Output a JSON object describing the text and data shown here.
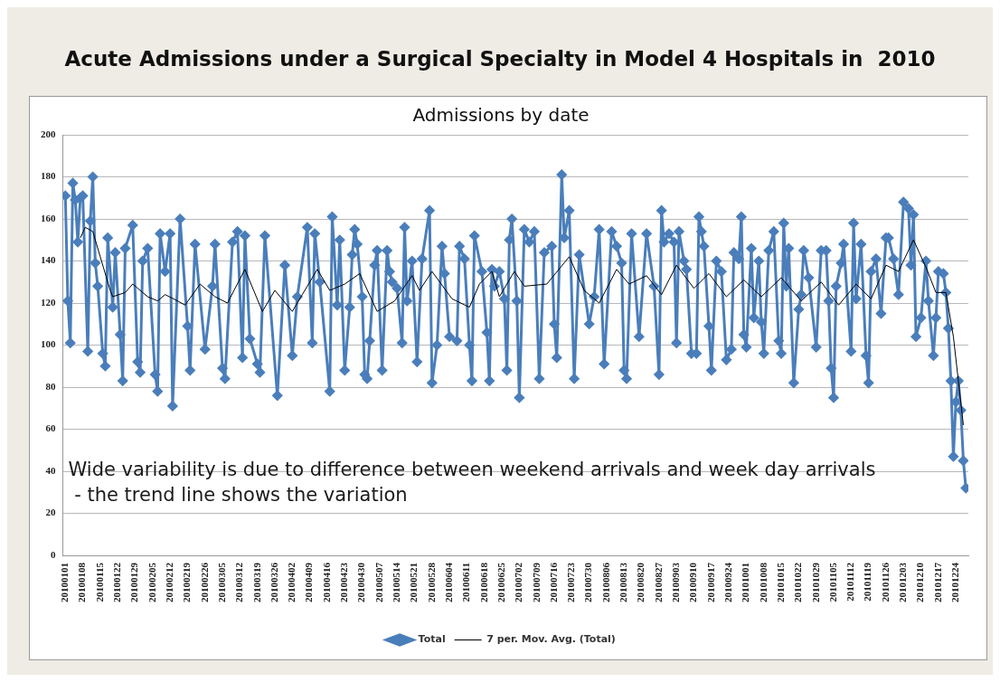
{
  "chart_data": {
    "type": "line",
    "title": "Acute Admissions under a Surgical Specialty in Model 4 Hospitals in  2010",
    "subtitle": "Admissions by date",
    "annotations": [
      "Wide variability is due to difference between weekend arrivals and week day arrivals\n - the trend line shows the variation"
    ],
    "series": [
      {
        "name": "Total",
        "color": "#4a7ebb",
        "marker": "diamond",
        "line_style": "solid",
        "x": [
          "2010-01-01",
          "2010-01-02",
          "2010-01-03",
          "2010-01-04",
          "2010-01-05",
          "2010-01-06",
          "2010-01-07",
          "2010-01-08",
          "2010-01-10",
          "2010-01-11",
          "2010-01-12",
          "2010-01-13",
          "2010-01-14",
          "2010-01-16",
          "2010-01-17",
          "2010-01-18",
          "2010-01-20",
          "2010-01-21",
          "2010-01-23",
          "2010-01-24",
          "2010-01-25",
          "2010-01-28",
          "2010-01-30",
          "2010-01-31",
          "2010-02-01",
          "2010-02-03",
          "2010-02-06",
          "2010-02-07",
          "2010-02-08",
          "2010-02-10",
          "2010-02-12",
          "2010-02-13",
          "2010-02-16",
          "2010-02-19",
          "2010-02-20",
          "2010-02-22",
          "2010-02-26",
          "2010-03-01",
          "2010-03-02",
          "2010-03-05",
          "2010-03-06",
          "2010-03-09",
          "2010-03-11",
          "2010-03-13",
          "2010-03-14",
          "2010-03-16",
          "2010-03-19",
          "2010-03-20",
          "2010-03-22",
          "2010-03-27",
          "2010-03-30",
          "2010-04-02",
          "2010-04-04",
          "2010-04-08",
          "2010-04-10",
          "2010-04-11",
          "2010-04-13",
          "2010-04-17",
          "2010-04-18",
          "2010-04-20",
          "2010-04-21",
          "2010-04-23",
          "2010-04-25",
          "2010-04-26",
          "2010-04-27",
          "2010-04-28",
          "2010-04-30",
          "2010-05-01",
          "2010-05-02",
          "2010-05-03",
          "2010-05-05",
          "2010-05-06",
          "2010-05-08",
          "2010-05-10",
          "2010-05-11",
          "2010-05-12",
          "2010-05-14",
          "2010-05-16",
          "2010-05-17",
          "2010-05-18",
          "2010-05-20",
          "2010-05-22",
          "2010-05-24",
          "2010-05-27",
          "2010-05-28",
          "2010-05-30",
          "2010-06-01",
          "2010-06-02",
          "2010-06-04",
          "2010-06-07",
          "2010-06-08",
          "2010-06-10",
          "2010-06-12",
          "2010-06-13",
          "2010-06-14",
          "2010-06-17",
          "2010-06-19",
          "2010-06-20",
          "2010-06-21",
          "2010-06-22",
          "2010-06-24",
          "2010-06-26",
          "2010-06-27",
          "2010-06-28",
          "2010-06-29",
          "2010-07-01",
          "2010-07-02",
          "2010-07-04",
          "2010-07-06",
          "2010-07-08",
          "2010-07-10",
          "2010-07-12",
          "2010-07-15",
          "2010-07-16",
          "2010-07-17",
          "2010-07-19",
          "2010-07-20",
          "2010-07-22",
          "2010-07-24",
          "2010-07-26",
          "2010-07-30",
          "2010-08-01",
          "2010-08-03",
          "2010-08-05",
          "2010-08-08",
          "2010-08-10",
          "2010-08-12",
          "2010-08-13",
          "2010-08-14",
          "2010-08-16",
          "2010-08-19",
          "2010-08-22",
          "2010-08-25",
          "2010-08-27",
          "2010-08-28",
          "2010-08-29",
          "2010-08-31",
          "2010-09-02",
          "2010-09-03",
          "2010-09-04",
          "2010-09-06",
          "2010-09-07",
          "2010-09-09",
          "2010-09-11",
          "2010-09-12",
          "2010-09-13",
          "2010-09-14",
          "2010-09-16",
          "2010-09-17",
          "2010-09-19",
          "2010-09-21",
          "2010-09-23",
          "2010-09-25",
          "2010-09-26",
          "2010-09-28",
          "2010-09-29",
          "2010-09-30",
          "2010-10-01",
          "2010-10-03",
          "2010-10-04",
          "2010-10-06",
          "2010-10-07",
          "2010-10-08",
          "2010-10-10",
          "2010-10-12",
          "2010-10-14",
          "2010-10-15",
          "2010-10-16",
          "2010-10-17",
          "2010-10-18",
          "2010-10-20",
          "2010-10-22",
          "2010-10-23",
          "2010-10-24",
          "2010-10-26",
          "2010-10-29",
          "2010-10-31",
          "2010-11-02",
          "2010-11-03",
          "2010-11-04",
          "2010-11-05",
          "2010-11-06",
          "2010-11-08",
          "2010-11-09",
          "2010-11-12",
          "2010-11-13",
          "2010-11-14",
          "2010-11-16",
          "2010-11-18",
          "2010-11-19",
          "2010-11-20",
          "2010-11-22",
          "2010-11-24",
          "2010-11-26",
          "2010-11-27",
          "2010-11-29",
          "2010-12-01",
          "2010-12-03",
          "2010-12-05",
          "2010-12-06",
          "2010-12-07",
          "2010-12-08",
          "2010-12-10",
          "2010-12-12",
          "2010-12-13",
          "2010-12-15",
          "2010-12-16",
          "2010-12-17",
          "2010-12-19",
          "2010-12-20",
          "2010-12-21",
          "2010-12-22",
          "2010-12-23",
          "2010-12-24",
          "2010-12-25",
          "2010-12-26",
          "2010-12-27",
          "2010-12-28"
        ],
        "values": [
          171,
          121,
          101,
          177,
          169,
          149,
          170,
          171,
          97,
          159,
          180,
          139,
          128,
          96,
          90,
          151,
          118,
          144,
          105,
          83,
          146,
          157,
          92,
          87,
          140,
          146,
          86,
          78,
          153,
          135,
          153,
          71,
          160,
          109,
          88,
          148,
          98,
          128,
          148,
          89,
          84,
          149,
          154,
          94,
          152,
          103,
          91,
          87,
          152,
          76,
          138,
          95,
          123,
          156,
          101,
          153,
          130,
          78,
          161,
          119,
          150,
          88,
          118,
          143,
          155,
          148,
          123,
          86,
          84,
          102,
          138,
          145,
          88,
          145,
          135,
          130,
          127,
          101,
          156,
          121,
          140,
          92,
          141,
          164,
          82,
          100,
          147,
          134,
          104,
          102,
          147,
          141,
          100,
          83,
          152,
          135,
          106,
          83,
          136,
          128,
          135,
          122,
          88,
          150,
          160,
          121,
          75,
          155,
          149,
          154,
          84,
          144,
          147,
          110,
          94,
          181,
          151,
          164,
          84,
          143,
          110,
          123,
          155,
          91,
          154,
          147,
          139,
          88,
          84,
          153,
          104,
          153,
          128,
          86,
          164,
          149,
          153,
          149,
          101,
          154,
          140,
          136,
          96,
          96,
          161,
          154,
          147,
          109,
          88,
          140,
          135,
          93,
          98,
          144,
          141,
          161,
          105,
          99,
          146,
          113,
          140,
          111,
          96,
          145,
          154,
          102,
          96,
          158,
          128,
          146,
          82,
          117,
          124,
          145,
          132,
          99,
          145,
          145,
          121,
          89,
          75,
          128,
          139,
          148,
          97,
          158,
          122,
          148,
          95,
          82,
          135,
          141,
          115,
          151,
          151,
          141,
          124,
          168,
          165,
          138,
          162,
          104,
          113,
          140,
          121,
          95,
          113,
          135,
          134,
          125,
          108,
          83,
          47,
          73,
          83,
          69,
          45,
          32
        ]
      },
      {
        "name": "7 per. Mov. Avg. (Total)",
        "color": "#000000",
        "marker": "none",
        "line_style": "solid",
        "x": [
          "2010-01-07",
          "2010-01-09",
          "2010-01-12",
          "2010-01-15",
          "2010-01-19",
          "2010-01-20",
          "2010-01-25",
          "2010-01-28",
          "2010-02-03",
          "2010-02-07",
          "2010-02-10",
          "2010-02-15",
          "2010-02-18",
          "2010-02-24",
          "2010-03-02",
          "2010-03-07",
          "2010-03-14",
          "2010-03-21",
          "2010-03-26",
          "2010-04-02",
          "2010-04-06",
          "2010-04-12",
          "2010-04-17",
          "2010-04-23",
          "2010-04-29",
          "2010-05-06",
          "2010-05-13",
          "2010-05-20",
          "2010-05-23",
          "2010-05-28",
          "2010-06-05",
          "2010-06-12",
          "2010-06-16",
          "2010-06-21",
          "2010-06-24",
          "2010-06-30",
          "2010-07-04",
          "2010-07-13",
          "2010-07-22",
          "2010-07-28",
          "2010-08-03",
          "2010-08-10",
          "2010-08-15",
          "2010-08-22",
          "2010-08-28",
          "2010-09-03",
          "2010-09-10",
          "2010-09-16",
          "2010-09-23",
          "2010-09-30",
          "2010-10-07",
          "2010-10-15",
          "2010-10-23",
          "2010-10-31",
          "2010-11-07",
          "2010-11-14",
          "2010-11-20",
          "2010-11-26",
          "2010-12-01",
          "2010-12-07",
          "2010-12-12",
          "2010-12-16",
          "2010-12-20",
          "2010-12-23",
          "2010-12-27"
        ],
        "values": [
          151,
          156,
          154,
          142,
          126,
          123,
          125,
          129,
          123,
          121,
          124,
          121,
          119,
          129,
          123,
          120,
          136,
          116,
          126,
          116,
          124,
          136,
          126,
          129,
          134,
          116,
          121,
          133,
          126,
          135,
          122,
          118,
          129,
          135,
          123,
          135,
          128,
          129,
          142,
          126,
          120,
          136,
          129,
          133,
          124,
          138,
          127,
          134,
          123,
          131,
          123,
          132,
          121,
          130,
          119,
          129,
          122,
          138,
          135,
          150,
          137,
          125,
          125,
          104,
          62
        ]
      }
    ],
    "xlim": [
      "2009-12-31",
      "2010-12-29"
    ],
    "xticks": [
      {
        "value": "2010-01-01",
        "label": "20100101"
      },
      {
        "value": "2010-01-08",
        "label": "20100108"
      },
      {
        "value": "2010-01-15",
        "label": "20100115"
      },
      {
        "value": "2010-01-22",
        "label": "20100122"
      },
      {
        "value": "2010-01-29",
        "label": "20100129"
      },
      {
        "value": "2010-02-05",
        "label": "20100205"
      },
      {
        "value": "2010-02-12",
        "label": "20100212"
      },
      {
        "value": "2010-02-19",
        "label": "20100219"
      },
      {
        "value": "2010-02-26",
        "label": "20100226"
      },
      {
        "value": "2010-03-05",
        "label": "20100305"
      },
      {
        "value": "2010-03-12",
        "label": "20100312"
      },
      {
        "value": "2010-03-19",
        "label": "20100319"
      },
      {
        "value": "2010-03-26",
        "label": "20100326"
      },
      {
        "value": "2010-04-02",
        "label": "20100402"
      },
      {
        "value": "2010-04-09",
        "label": "20100409"
      },
      {
        "value": "2010-04-16",
        "label": "20100416"
      },
      {
        "value": "2010-04-23",
        "label": "20100423"
      },
      {
        "value": "2010-04-30",
        "label": "20100430"
      },
      {
        "value": "2010-05-07",
        "label": "20100507"
      },
      {
        "value": "2010-05-14",
        "label": "20100514"
      },
      {
        "value": "2010-05-21",
        "label": "20100521"
      },
      {
        "value": "2010-05-28",
        "label": "20100528"
      },
      {
        "value": "2010-06-04",
        "label": "20100604"
      },
      {
        "value": "2010-06-11",
        "label": "20100611"
      },
      {
        "value": "2010-06-18",
        "label": "20100618"
      },
      {
        "value": "2010-06-25",
        "label": "20100625"
      },
      {
        "value": "2010-07-02",
        "label": "20100702"
      },
      {
        "value": "2010-07-09",
        "label": "20100709"
      },
      {
        "value": "2010-07-16",
        "label": "20100716"
      },
      {
        "value": "2010-07-23",
        "label": "20100723"
      },
      {
        "value": "2010-07-30",
        "label": "20100730"
      },
      {
        "value": "2010-08-06",
        "label": "20100806"
      },
      {
        "value": "2010-08-13",
        "label": "20100813"
      },
      {
        "value": "2010-08-20",
        "label": "20100820"
      },
      {
        "value": "2010-08-27",
        "label": "20100827"
      },
      {
        "value": "2010-09-03",
        "label": "20100903"
      },
      {
        "value": "2010-09-10",
        "label": "20100910"
      },
      {
        "value": "2010-09-17",
        "label": "20100917"
      },
      {
        "value": "2010-09-24",
        "label": "20100924"
      },
      {
        "value": "2010-10-01",
        "label": "20101001"
      },
      {
        "value": "2010-10-08",
        "label": "20101008"
      },
      {
        "value": "2010-10-15",
        "label": "20101015"
      },
      {
        "value": "2010-10-22",
        "label": "20101022"
      },
      {
        "value": "2010-10-29",
        "label": "20101029"
      },
      {
        "value": "2010-11-05",
        "label": "20101105"
      },
      {
        "value": "2010-11-12",
        "label": "20101112"
      },
      {
        "value": "2010-11-19",
        "label": "20101119"
      },
      {
        "value": "2010-11-26",
        "label": "20101126"
      },
      {
        "value": "2010-12-03",
        "label": "20101203"
      },
      {
        "value": "2010-12-10",
        "label": "20101210"
      },
      {
        "value": "2010-12-17",
        "label": "20101217"
      },
      {
        "value": "2010-12-24",
        "label": "20101224"
      }
    ],
    "ylim": [
      0,
      200
    ],
    "yticks": [
      0,
      20,
      40,
      60,
      80,
      100,
      120,
      140,
      160,
      180,
      200
    ],
    "grid": "y",
    "legend": "bottom"
  }
}
